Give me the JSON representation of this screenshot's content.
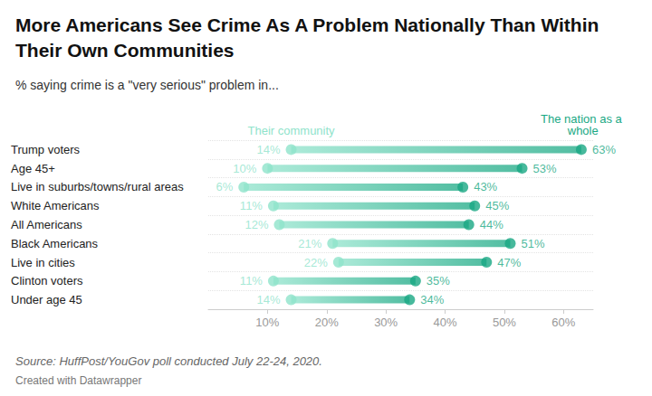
{
  "chart_data": {
    "type": "dumbbell",
    "title": "More Americans See Crime As A Problem Nationally Than Within Their Own Communities",
    "subtitle": "% saying crime is a \"very serious\" problem in...",
    "annotations": [
      "Source: HuffPost/YouGov poll conducted July 22-24, 2020.",
      "Created with Datawrapper"
    ],
    "orientation": "horizontal",
    "categories": [
      "Trump voters",
      "Age 45+",
      "Live in suburbs/towns/rural areas",
      "White Americans",
      "All Americans",
      "Black Americans",
      "Live in cities",
      "Clinton voters",
      "Under age 45"
    ],
    "series": [
      {
        "name": "Their community",
        "color": "#8fe3cb",
        "values": [
          14,
          10,
          6,
          11,
          12,
          21,
          22,
          11,
          14
        ],
        "value_labels": [
          "14%",
          "10%",
          "6%",
          "11%",
          "12%",
          "21%",
          "22%",
          "11%",
          "14%"
        ]
      },
      {
        "name": "The nation as a whole",
        "color": "#19a883",
        "values": [
          63,
          53,
          43,
          45,
          44,
          51,
          47,
          35,
          34
        ],
        "value_labels": [
          "63%",
          "53%",
          "43%",
          "45%",
          "44%",
          "51%",
          "47%",
          "35%",
          "34%"
        ]
      }
    ],
    "xlim": [
      0,
      65
    ],
    "xticks": [
      {
        "value": 10,
        "label": "10%"
      },
      {
        "value": 20,
        "label": "20%"
      },
      {
        "value": 30,
        "label": "30%"
      },
      {
        "value": 40,
        "label": "40%"
      },
      {
        "value": 50,
        "label": "50%"
      },
      {
        "value": 60,
        "label": "60%"
      }
    ],
    "grid": true,
    "data_labels": true,
    "marker": "circle"
  }
}
